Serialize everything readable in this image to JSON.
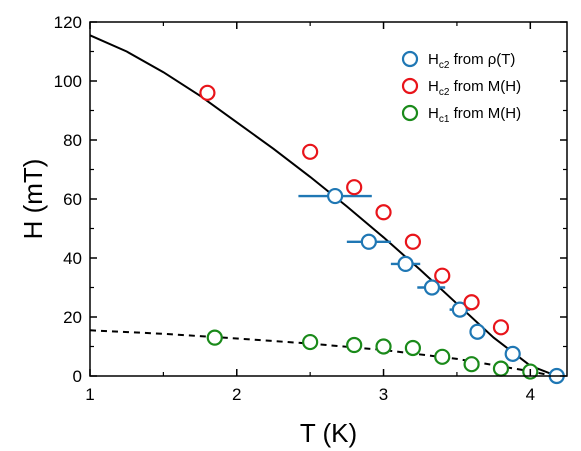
{
  "chart_data": {
    "type": "scatter",
    "xlabel": "T (K)",
    "ylabel": "H (mT)",
    "xlim": [
      1,
      4.25
    ],
    "ylim": [
      0,
      120
    ],
    "x_ticks": [
      1,
      2,
      3,
      4
    ],
    "y_ticks": [
      0,
      20,
      40,
      60,
      80,
      100,
      120
    ],
    "grid": false,
    "legend_position": "top-right",
    "series": [
      {
        "name": "Hc2 from ρ(T)",
        "label_main": "H",
        "label_sub": "c2",
        "label_rest": " from ρ(T)",
        "color": "#1f77b4",
        "marker": "open-circle",
        "points": [
          {
            "x": 2.67,
            "y": 61,
            "xerr_low": 2.42,
            "xerr_high": 2.92
          },
          {
            "x": 2.9,
            "y": 45.5,
            "xerr_low": 2.75,
            "xerr_high": 3.05
          },
          {
            "x": 3.15,
            "y": 38,
            "xerr_low": 3.05,
            "xerr_high": 3.25
          },
          {
            "x": 3.33,
            "y": 30,
            "xerr_low": 3.23,
            "xerr_high": 3.42
          },
          {
            "x": 3.52,
            "y": 22.5,
            "xerr_low": 3.45,
            "xerr_high": 3.59
          },
          {
            "x": 3.64,
            "y": 15,
            "xerr_low": 3.59,
            "xerr_high": 3.69
          },
          {
            "x": 3.88,
            "y": 7.5,
            "xerr_low": 3.85,
            "xerr_high": 3.91
          },
          {
            "x": 4.18,
            "y": 0,
            "xerr_low": 4.16,
            "xerr_high": 4.2
          }
        ]
      },
      {
        "name": "Hc2 from M(H)",
        "label_main": "H",
        "label_sub": "c2",
        "label_rest": " from M(H)",
        "color": "#e8141a",
        "marker": "open-circle",
        "points": [
          {
            "x": 1.8,
            "y": 96
          },
          {
            "x": 2.5,
            "y": 76
          },
          {
            "x": 2.8,
            "y": 64
          },
          {
            "x": 3.0,
            "y": 55.5
          },
          {
            "x": 3.2,
            "y": 45.5
          },
          {
            "x": 3.4,
            "y": 34
          },
          {
            "x": 3.6,
            "y": 25
          },
          {
            "x": 3.8,
            "y": 16.5
          }
        ]
      },
      {
        "name": "Hc1 from M(H)",
        "label_main": "H",
        "label_sub": "c1",
        "label_rest": " from M(H)",
        "color": "#1a8a1a",
        "marker": "open-circle",
        "points": [
          {
            "x": 1.85,
            "y": 13
          },
          {
            "x": 2.5,
            "y": 11.5
          },
          {
            "x": 2.8,
            "y": 10.5
          },
          {
            "x": 3.0,
            "y": 10
          },
          {
            "x": 3.2,
            "y": 9.5
          },
          {
            "x": 3.4,
            "y": 6.5
          },
          {
            "x": 3.6,
            "y": 4
          },
          {
            "x": 3.8,
            "y": 2.5
          },
          {
            "x": 4.0,
            "y": 1.5
          }
        ]
      }
    ],
    "fit_lines": [
      {
        "style": "solid",
        "color": "#000000",
        "points": [
          [
            1,
            115.5
          ],
          [
            1.25,
            110
          ],
          [
            1.5,
            103
          ],
          [
            1.75,
            95
          ],
          [
            2.0,
            86
          ],
          [
            2.25,
            77
          ],
          [
            2.5,
            67.5
          ],
          [
            2.75,
            57.5
          ],
          [
            3.0,
            47
          ],
          [
            3.25,
            36
          ],
          [
            3.5,
            24.5
          ],
          [
            3.75,
            13
          ],
          [
            4.0,
            3.5
          ],
          [
            4.18,
            0
          ]
        ]
      },
      {
        "style": "dashed",
        "color": "#000000",
        "points": [
          [
            1,
            15.5
          ],
          [
            1.5,
            14.3
          ],
          [
            2.0,
            12.7
          ],
          [
            2.5,
            11
          ],
          [
            3.0,
            8.8
          ],
          [
            3.5,
            5.8
          ],
          [
            4.0,
            1.6
          ],
          [
            4.1,
            0.6
          ]
        ]
      }
    ]
  }
}
